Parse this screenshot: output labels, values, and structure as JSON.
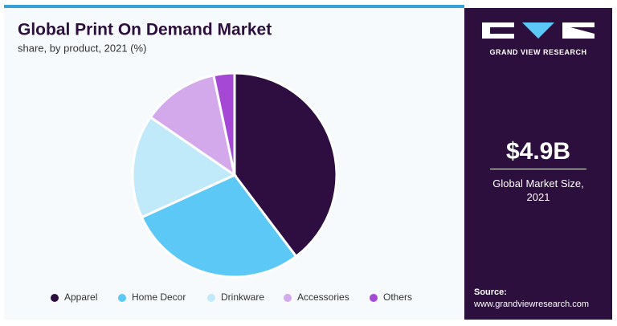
{
  "chart_data": {
    "type": "pie",
    "title": "Global Print On Demand Market",
    "subtitle": "share, by product, 2021 (%)",
    "categories": [
      "Apparel",
      "Home Decor",
      "Drinkware",
      "Accessories",
      "Others"
    ],
    "values": [
      39.7,
      28.5,
      16.4,
      12.1,
      3.3
    ],
    "colors": [
      "#2e0d40",
      "#5bc8f5",
      "#c0e9f9",
      "#d4a9ec",
      "#a548d6"
    ]
  },
  "side_panel": {
    "brand": "GRAND VIEW RESEARCH",
    "market_size": "$4.9B",
    "market_size_label": "Global Market Size, 2021",
    "source_label": "Source:",
    "source_url": "www.grandviewresearch.com"
  }
}
